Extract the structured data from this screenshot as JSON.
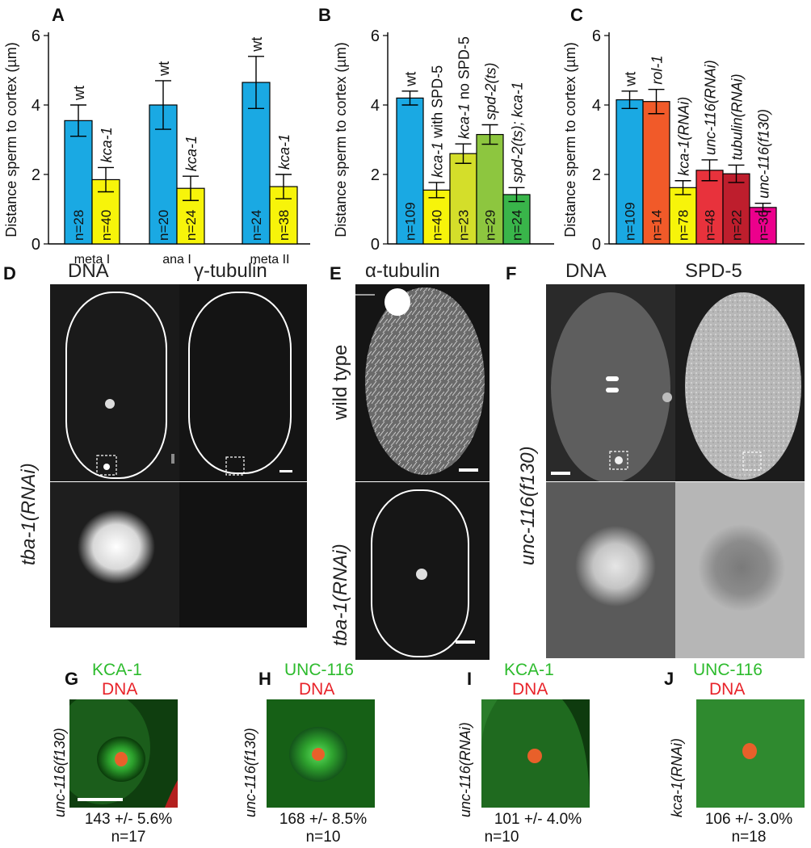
{
  "colors": {
    "blue": "#1aa9e3",
    "yellow": "#f7f40a",
    "orange": "#f15a29",
    "lime": "#d4de2a",
    "green_light": "#8dc63f",
    "green_dark": "#39b54a",
    "red_med": "#e8323c",
    "red_dark": "#be1e2d",
    "magenta": "#ec008c",
    "kca_green": "#2dbb2d",
    "dna_red": "#e8232a"
  },
  "panels": {
    "A": "A",
    "B": "B",
    "C": "C",
    "D": "D",
    "E": "E",
    "F": "F",
    "G": "G",
    "H": "H",
    "I": "I",
    "J": "J"
  },
  "chart_data": [
    {
      "id": "A",
      "type": "bar",
      "ylabel": "Distance sperm to cortex (µm)",
      "ylim": [
        0,
        6
      ],
      "yticks": [
        0,
        2,
        4,
        6
      ],
      "groups": [
        "meta I",
        "ana I",
        "meta II"
      ],
      "bars": [
        {
          "label": "wt",
          "value": 3.55,
          "err": 0.45,
          "n": "n=28",
          "color": "#1aa9e3",
          "italic": false
        },
        {
          "label": "kca-1",
          "value": 1.85,
          "err": 0.35,
          "n": "n=40",
          "color": "#f7f40a",
          "italic": true
        },
        {
          "label": "wt",
          "value": 4.0,
          "err": 0.7,
          "n": "n=20",
          "color": "#1aa9e3",
          "italic": false
        },
        {
          "label": "kca-1",
          "value": 1.6,
          "err": 0.35,
          "n": "n=24",
          "color": "#f7f40a",
          "italic": true
        },
        {
          "label": "wt",
          "value": 4.65,
          "err": 0.75,
          "n": "n=24",
          "color": "#1aa9e3",
          "italic": false
        },
        {
          "label": "kca-1",
          "value": 1.65,
          "err": 0.35,
          "n": "n=38",
          "color": "#f7f40a",
          "italic": true
        }
      ]
    },
    {
      "id": "B",
      "type": "bar",
      "ylabel": "Distance sperm to cortex (µm)",
      "ylim": [
        0,
        6
      ],
      "yticks": [
        0,
        2,
        4,
        6
      ],
      "bars": [
        {
          "label": "wt",
          "value": 4.2,
          "err": 0.2,
          "n": "n=109",
          "color": "#1aa9e3",
          "italic": false
        },
        {
          "label": "kca-1 with  SPD-5",
          "value": 1.55,
          "err": 0.22,
          "n": "n=40",
          "color": "#f7f40a",
          "italic": "partial"
        },
        {
          "label": "kca-1 no SPD-5",
          "value": 2.6,
          "err": 0.28,
          "n": "n=23",
          "color": "#d4de2a",
          "italic": "partial"
        },
        {
          "label": "spd-2(ts)",
          "value": 3.15,
          "err": 0.28,
          "n": "n=29",
          "color": "#8dc63f",
          "italic": true
        },
        {
          "label": "spd-2(ts); kca-1",
          "value": 1.42,
          "err": 0.2,
          "n": "n=24",
          "color": "#39b54a",
          "italic": true
        }
      ]
    },
    {
      "id": "C",
      "type": "bar",
      "ylabel": "Distance sperm to cortex (µm)",
      "ylim": [
        0,
        6
      ],
      "yticks": [
        0,
        2,
        4,
        6
      ],
      "bars": [
        {
          "label": "wt",
          "value": 4.15,
          "err": 0.25,
          "n": "n=109",
          "color": "#1aa9e3",
          "italic": false
        },
        {
          "label": "rol-1",
          "value": 4.1,
          "err": 0.35,
          "n": "n=14",
          "color": "#f15a29",
          "italic": true
        },
        {
          "label": "kca-1(RNAi)",
          "value": 1.62,
          "err": 0.2,
          "n": "n=78",
          "color": "#f7f40a",
          "italic": true
        },
        {
          "label": "unc-116(RNAi)",
          "value": 2.12,
          "err": 0.3,
          "n": "n=48",
          "color": "#e8323c",
          "italic": true
        },
        {
          "label": "tubulin(RNAi)",
          "value": 2.02,
          "err": 0.25,
          "n": "n=22",
          "color": "#be1e2d",
          "italic": true
        },
        {
          "label": "unc-116(f130)",
          "value": 1.05,
          "err": 0.12,
          "n": "n=36",
          "color": "#ec008c",
          "italic": true
        }
      ]
    }
  ],
  "panel_D": {
    "col1": "DNA",
    "col2": "γ-tubulin",
    "side": "tba-1(RNAi)"
  },
  "panel_E": {
    "title": "α-tubulin",
    "row1": "wild type",
    "row2": "tba-1(RNAi)"
  },
  "panel_F": {
    "col1": "DNA",
    "col2": "SPD-5",
    "side": "unc-116(f130)"
  },
  "panel_G": {
    "green": "KCA-1",
    "red": "DNA",
    "side": "unc-116(f130)",
    "pct": "143 +/- 5.6%",
    "n": "n=17"
  },
  "panel_H": {
    "green": "UNC-116",
    "red": "DNA",
    "side": "unc-116(f130)",
    "pct": "168 +/- 8.5%",
    "n": "n=10"
  },
  "panel_I": {
    "green": "KCA-1",
    "red": "DNA",
    "side": "unc-116(RNAi)",
    "pct": "101 +/- 4.0%",
    "n": "n=10"
  },
  "panel_J": {
    "green": "UNC-116",
    "red": "DNA",
    "side": "kca-1(RNAi)",
    "pct": "106 +/- 3.0%",
    "n": "n=18"
  }
}
